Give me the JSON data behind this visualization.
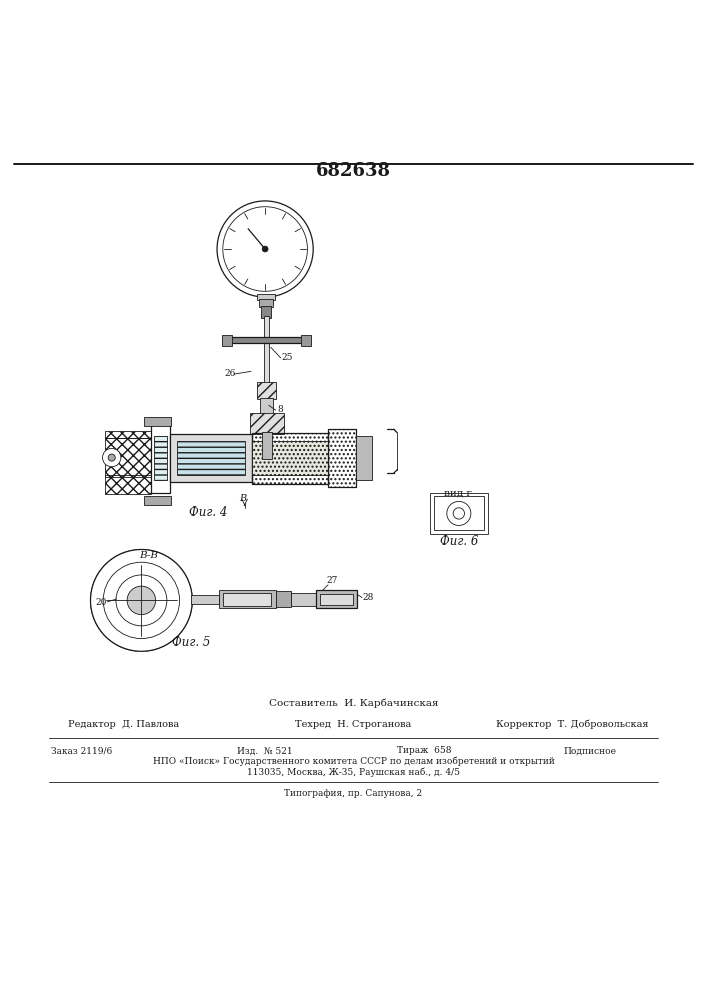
{
  "title": "682638",
  "fig4_label": "Фиг. 4",
  "fig5_label": "Фиг. 5",
  "fig6_label": "Фиг. 6",
  "view_label": "вид г",
  "footer": {
    "compiler": "Составитель  И. Карбачинская",
    "editor": "Редактор  Д. Павлова",
    "techred": "Техред  Н. Строганова",
    "corrector": "Корректор  Т. Добровольская",
    "order": "Заказ 2119/6",
    "izd": "Изд.  № 521",
    "tirazh": "Тираж  658",
    "podpisnoe": "Подписное",
    "npo": "НПО «Поиск» Государственного комитета СССР по делам изобретений и открытий",
    "address": "113035, Москва, Ж-35, Раушская наб., д. 4/5",
    "tipografia": "Типография, пр. Сапунова, 2"
  },
  "bg_color": "#ffffff",
  "line_color": "#1a1a1a"
}
